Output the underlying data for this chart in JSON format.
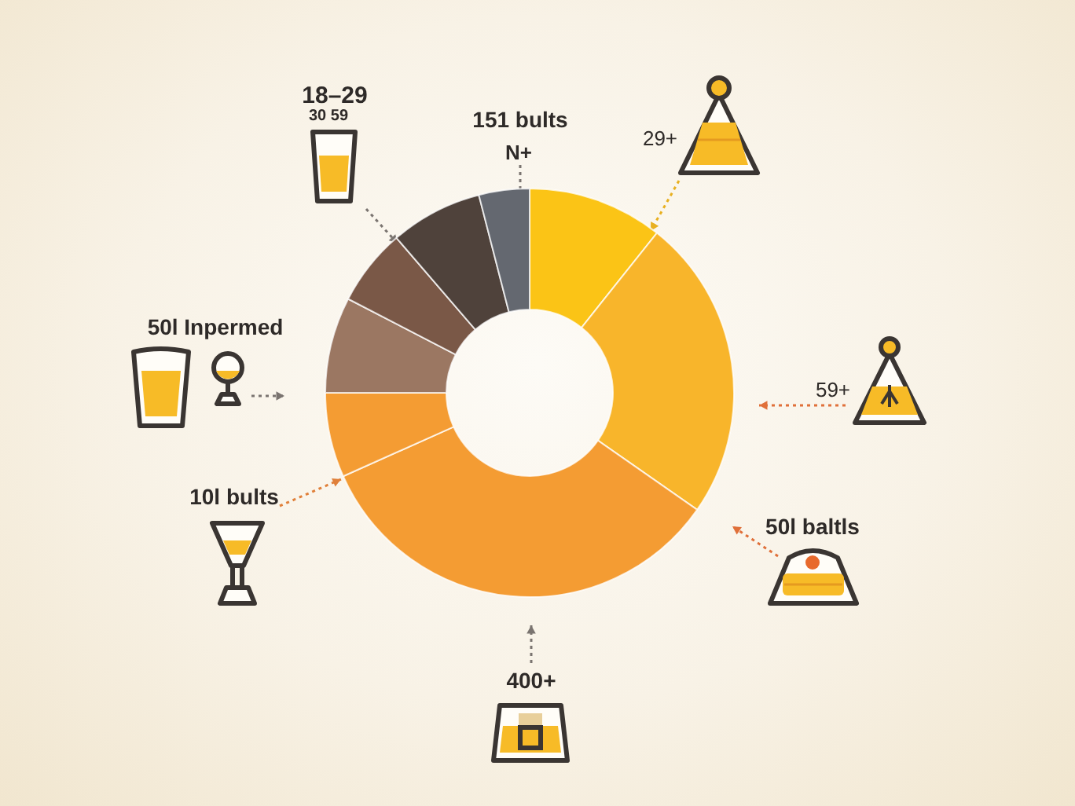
{
  "chart_data": {
    "type": "donut",
    "categories": [
      null,
      null,
      null,
      null,
      null,
      null,
      null,
      null
    ],
    "values": [
      10.7,
      24.0,
      33.6,
      6.7,
      7.6,
      6.1,
      7.3,
      4.0
    ],
    "colors": [
      "#fbc416",
      "#f8b52b",
      "#f49c33",
      "#f49c33",
      "#9b7762",
      "#7a5847",
      "#4f423b",
      "#646870"
    ],
    "annotations": [
      "18–29",
      "30 59",
      "151 bults",
      "29+",
      "N+",
      "50l Inpermed",
      "59+",
      "10l bults",
      "50l baltls",
      "400+"
    ]
  }
}
